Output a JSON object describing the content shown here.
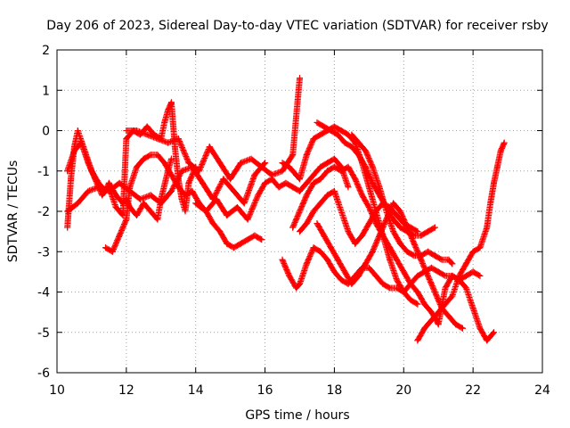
{
  "chart_data": {
    "type": "scatter",
    "title": "Day 206 of 2023, Sidereal Day-to-day VTEC variation (SDTVAR) for receiver rsby",
    "xlabel": "GPS time / hours",
    "ylabel": "SDTVAR / TECUs",
    "xlim": [
      10,
      24
    ],
    "ylim": [
      -6,
      2
    ],
    "xticks": [
      "10",
      "12",
      "14",
      "16",
      "18",
      "20",
      "22",
      "24"
    ],
    "yticks": [
      "-6",
      "-5",
      "-4",
      "-3",
      "-2",
      "-1",
      "0",
      "1",
      "2"
    ],
    "grid": true,
    "marker": "+",
    "color": "#ff0000",
    "series": [
      {
        "name": "trace-1",
        "x": [
          10.3,
          10.4,
          10.5,
          10.6,
          10.8,
          11.0,
          11.2,
          11.4,
          11.5,
          11.7,
          11.9,
          12.0,
          12.1,
          12.3,
          12.5,
          12.7,
          12.9,
          13.0,
          13.2,
          13.3
        ],
        "y": [
          -2.4,
          -1.2,
          -0.4,
          0.0,
          -0.5,
          -1.0,
          -1.3,
          -1.5,
          -1.3,
          -1.6,
          -1.8,
          -1.7,
          -1.9,
          -2.1,
          -1.8,
          -2.0,
          -2.2,
          -1.7,
          -1.0,
          -0.7
        ]
      },
      {
        "name": "trace-2",
        "x": [
          10.3,
          10.5,
          10.7,
          10.9,
          11.1,
          11.3,
          11.5,
          11.7,
          11.9,
          12.0,
          12.2,
          12.4,
          12.6,
          12.8,
          13.0,
          13.1,
          13.2,
          13.3,
          13.4,
          13.5,
          13.6,
          13.7,
          13.8,
          14.0
        ],
        "y": [
          -1.0,
          -0.5,
          -0.3,
          -0.8,
          -1.2,
          -1.6,
          -1.4,
          -1.9,
          -2.1,
          -0.2,
          0.0,
          -0.1,
          0.1,
          -0.1,
          -0.2,
          0.2,
          0.5,
          0.7,
          -0.4,
          -1.2,
          -1.7,
          -2.0,
          -1.3,
          -0.9
        ]
      },
      {
        "name": "trace-3",
        "x": [
          11.4,
          11.6,
          11.8,
          12.0,
          12.1,
          12.3,
          12.5,
          12.7,
          12.9,
          13.1,
          13.3,
          13.5,
          13.7,
          13.9,
          14.1,
          14.3,
          14.5,
          14.7,
          14.9,
          15.1,
          15.3,
          15.5,
          15.7,
          15.9
        ],
        "y": [
          -2.9,
          -3.0,
          -2.6,
          -2.2,
          -1.4,
          -0.9,
          -0.7,
          -0.6,
          -0.6,
          -0.8,
          -1.1,
          -1.4,
          -1.6,
          -1.5,
          -1.8,
          -2.0,
          -2.3,
          -2.5,
          -2.8,
          -2.9,
          -2.8,
          -2.7,
          -2.6,
          -2.7
        ]
      },
      {
        "name": "trace-4",
        "x": [
          10.3,
          10.6,
          10.9,
          11.2,
          11.5,
          11.8,
          12.1,
          12.4,
          12.7,
          13.0,
          13.3,
          13.6,
          13.9,
          14.2,
          14.5,
          14.8,
          15.1,
          15.4,
          15.7,
          16.0
        ],
        "y": [
          -2.0,
          -1.8,
          -1.5,
          -1.4,
          -1.5,
          -1.3,
          -1.5,
          -1.7,
          -1.6,
          -1.8,
          -1.5,
          -1.0,
          -0.9,
          -1.3,
          -1.7,
          -1.2,
          -1.5,
          -1.8,
          -1.1,
          -0.8
        ]
      },
      {
        "name": "trace-5",
        "x": [
          12.0,
          12.3,
          12.6,
          12.9,
          13.2,
          13.5,
          13.8,
          14.1,
          14.4,
          14.7,
          15.0,
          15.3,
          15.6,
          15.9,
          16.2,
          16.5,
          16.8,
          17.0
        ],
        "y": [
          0.0,
          0.0,
          -0.1,
          -0.2,
          -0.3,
          -0.2,
          -0.8,
          -1.0,
          -0.4,
          -0.8,
          -1.2,
          -0.8,
          -0.7,
          -0.9,
          -1.1,
          -1.0,
          -0.6,
          1.3
        ]
      },
      {
        "name": "trace-6",
        "x": [
          14.0,
          14.3,
          14.6,
          14.9,
          15.2,
          15.5,
          15.8,
          16.0,
          16.2,
          16.4,
          16.6,
          16.8,
          17.0,
          17.2,
          17.4,
          17.6,
          17.8,
          18.0,
          18.2,
          18.4
        ],
        "y": [
          -1.8,
          -2.0,
          -1.7,
          -2.1,
          -1.9,
          -2.2,
          -1.6,
          -1.3,
          -1.2,
          -1.4,
          -1.3,
          -1.4,
          -1.5,
          -1.3,
          -1.1,
          -0.9,
          -0.8,
          -0.7,
          -0.9,
          -1.4
        ]
      },
      {
        "name": "trace-7",
        "x": [
          16.5,
          16.7,
          16.9,
          17.0,
          17.2,
          17.4,
          17.6,
          17.8,
          18.0,
          18.2,
          18.4,
          18.6,
          18.8,
          19.0,
          19.2,
          19.4,
          19.6,
          19.8,
          20.0,
          20.2,
          20.4
        ],
        "y": [
          -0.8,
          -0.9,
          -1.1,
          -1.2,
          -0.6,
          -0.2,
          -0.1,
          0.0,
          0.1,
          0.0,
          -0.1,
          -0.3,
          -0.8,
          -1.4,
          -2.0,
          -2.6,
          -3.2,
          -3.7,
          -4.0,
          -4.2,
          -4.3
        ]
      },
      {
        "name": "trace-8",
        "x": [
          17.5,
          17.7,
          17.9,
          18.1,
          18.3,
          18.5,
          18.7,
          18.9,
          19.1,
          19.3,
          19.5,
          19.7,
          19.9,
          20.1,
          20.3,
          20.5,
          20.7,
          20.9
        ],
        "y": [
          0.2,
          0.1,
          0.0,
          -0.1,
          -0.3,
          -0.4,
          -0.6,
          -0.9,
          -1.3,
          -1.6,
          -1.9,
          -2.2,
          -2.4,
          -2.5,
          -2.6,
          -2.6,
          -2.5,
          -2.4
        ]
      },
      {
        "name": "trace-9",
        "x": [
          18.5,
          18.7,
          18.9,
          19.1,
          19.3,
          19.5,
          19.7,
          19.9,
          20.1,
          20.3,
          20.5,
          20.7,
          20.9,
          21.1,
          21.3,
          21.4
        ],
        "y": [
          -0.1,
          -0.3,
          -0.5,
          -0.9,
          -1.4,
          -2.0,
          -2.5,
          -2.8,
          -3.0,
          -3.1,
          -3.1,
          -3.0,
          -3.1,
          -3.2,
          -3.2,
          -3.3
        ]
      },
      {
        "name": "trace-10",
        "x": [
          16.5,
          16.7,
          16.9,
          17.0,
          17.2,
          17.4,
          17.6,
          17.8,
          18.0,
          18.2,
          18.4,
          18.6,
          18.8,
          19.0,
          19.2,
          19.4,
          19.6,
          19.8,
          20.0,
          20.2,
          20.4,
          20.6,
          20.8,
          21.0,
          21.2,
          21.4,
          21.6,
          21.8,
          22.0,
          22.2
        ],
        "y": [
          -3.2,
          -3.6,
          -3.9,
          -3.8,
          -3.3,
          -2.9,
          -3.0,
          -3.2,
          -3.5,
          -3.7,
          -3.8,
          -3.6,
          -3.4,
          -3.4,
          -3.6,
          -3.8,
          -3.9,
          -3.9,
          -4.0,
          -3.8,
          -3.6,
          -3.5,
          -3.4,
          -3.5,
          -3.6,
          -3.6,
          -3.7,
          -3.6,
          -3.5,
          -3.6
        ]
      },
      {
        "name": "trace-11",
        "x": [
          16.8,
          17.0,
          17.2,
          17.4,
          17.6,
          17.8,
          18.0,
          18.2,
          18.4,
          18.6,
          18.8,
          19.0,
          19.2,
          19.4,
          19.6,
          19.8,
          20.0,
          20.2,
          20.4,
          20.6,
          20.8,
          21.0,
          21.2,
          21.4,
          21.6,
          21.8,
          22.0,
          22.2,
          22.4,
          22.6
        ],
        "y": [
          -2.4,
          -2.0,
          -1.6,
          -1.3,
          -1.2,
          -1.0,
          -0.9,
          -1.0,
          -0.9,
          -1.2,
          -1.6,
          -1.9,
          -2.3,
          -2.6,
          -2.9,
          -3.2,
          -3.5,
          -3.8,
          -4.0,
          -4.3,
          -4.5,
          -4.8,
          -3.9,
          -3.6,
          -3.7,
          -3.9,
          -4.4,
          -4.9,
          -5.2,
          -5.0
        ]
      },
      {
        "name": "trace-12",
        "x": [
          17.0,
          17.2,
          17.4,
          17.6,
          17.8,
          18.0,
          18.2,
          18.4,
          18.6,
          18.8,
          19.0,
          19.2,
          19.4,
          19.6,
          19.8,
          20.0,
          20.2,
          20.4
        ],
        "y": [
          -2.5,
          -2.3,
          -2.0,
          -1.8,
          -1.6,
          -1.5,
          -2.0,
          -2.5,
          -2.8,
          -2.6,
          -2.3,
          -2.0,
          -1.8,
          -1.9,
          -2.1,
          -2.3,
          -2.4,
          -2.5
        ]
      },
      {
        "name": "trace-13",
        "x": [
          17.5,
          17.7,
          17.9,
          18.1,
          18.3,
          18.5,
          18.7,
          18.9,
          19.1,
          19.3,
          19.5,
          19.7,
          19.9,
          20.1,
          20.3,
          20.5,
          20.7,
          20.9,
          21.1,
          21.3,
          21.5,
          21.7
        ],
        "y": [
          -2.3,
          -2.6,
          -2.9,
          -3.2,
          -3.5,
          -3.8,
          -3.6,
          -3.3,
          -3.0,
          -2.6,
          -2.2,
          -1.8,
          -2.0,
          -2.4,
          -2.8,
          -3.2,
          -3.6,
          -4.0,
          -4.4,
          -4.6,
          -4.8,
          -4.9
        ]
      },
      {
        "name": "trace-14",
        "x": [
          20.4,
          20.6,
          20.8,
          21.0,
          21.2,
          21.4,
          21.6,
          21.8,
          22.0,
          22.2,
          22.4,
          22.5,
          22.6,
          22.7,
          22.8,
          22.9
        ],
        "y": [
          -5.2,
          -4.9,
          -4.7,
          -4.5,
          -4.3,
          -4.1,
          -3.6,
          -3.3,
          -3.0,
          -2.9,
          -2.4,
          -1.8,
          -1.3,
          -0.9,
          -0.5,
          -0.3
        ]
      }
    ]
  }
}
